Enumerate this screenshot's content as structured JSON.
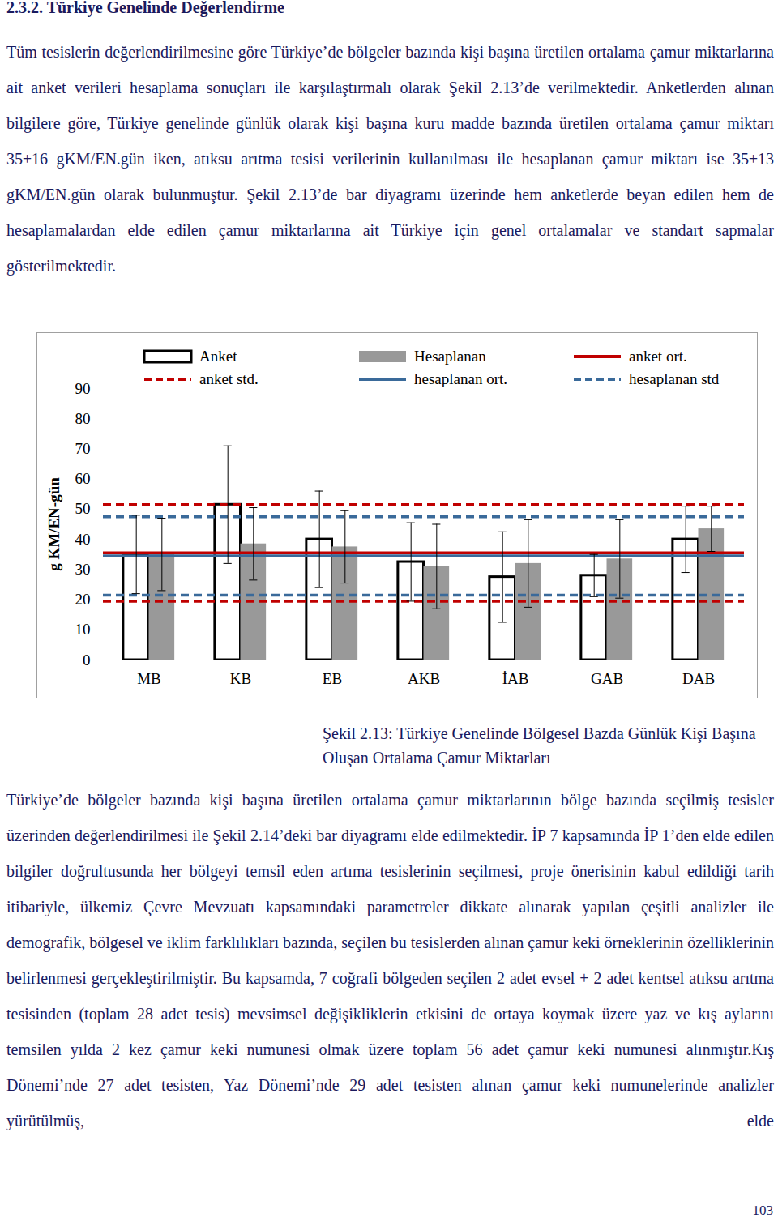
{
  "section_title": "2.3.2. Türkiye Genelinde Değerlendirme",
  "paragraphs": [
    "Tüm tesislerin değerlendirilmesine göre Türkiye’de bölgeler bazında kişi başına üretilen ortalama çamur miktarlarına ait anket verileri hesaplama sonuçları ile karşılaştırmalı olarak Şekil 2.13’de verilmektedir. Anketlerden alınan bilgilere göre, Türkiye genelinde günlük olarak kişi başına kuru madde bazında üretilen ortalama çamur miktarı 35±16 gKM/EN.gün iken, atıksu arıtma tesisi verilerinin kullanılması ile hesaplanan çamur miktarı ise 35±13 gKM/EN.gün olarak bulunmuştur. Şekil 2.13’de bar diyagramı üzerinde hem anketlerde beyan edilen hem de hesaplamalardan elde edilen çamur miktarlarına ait Türkiye için genel ortalamalar ve standart sapmalar gösterilmektedir.",
    "Türkiye’de bölgeler bazında kişi başına üretilen ortalama çamur miktarlarının bölge bazında seçilmiş tesisler üzerinden değerlendirilmesi ile Şekil 2.14’deki bar diyagramı elde edilmektedir. İP 7 kapsamında İP 1’den elde edilen bilgiler doğrultusunda her bölgeyi temsil eden artıma tesislerinin seçilmesi, proje önerisinin kabul edildiği tarih itibariyle, ülkemiz Çevre Mevzuatı kapsamındaki parametreler dikkate alınarak yapılan çeşitli analizler ile demografik, bölgesel ve iklim farklılıkları bazında, seçilen bu tesislerden alınan çamur keki örneklerinin özelliklerinin belirlenmesi gerçekleştirilmiştir. Bu kapsamda, 7 coğrafi bölgeden seçilen 2 adet evsel + 2 adet kentsel atıksu arıtma tesisinden (toplam 28 adet tesis) mevsimsel değişikliklerin etkisini de ortaya koymak üzere yaz ve kış aylarını temsilen yılda 2 kez çamur keki numunesi olmak üzere toplam 56 adet çamur keki numunesi alınmıştır.Kış Dönemi’nde 27 adet tesisten, Yaz Dönemi’nde 29 adet tesisten alınan çamur keki numunelerinde analizler yürütülmüş, elde"
  ],
  "chart_data": {
    "type": "bar",
    "y_label": "g KM/EN-gün",
    "categories": [
      "MB",
      "KB",
      "EB",
      "AKB",
      "İAB",
      "GAB",
      "DAB"
    ],
    "series": [
      {
        "name": "Anket",
        "color": "#ffffff",
        "values": [
          35,
          51.5,
          40,
          32.5,
          27.5,
          28,
          40
        ],
        "errors": [
          13,
          19.5,
          16,
          13,
          15,
          7,
          11
        ]
      },
      {
        "name": "Hesaplanan",
        "color": "#999999",
        "values": [
          35,
          38.5,
          37.5,
          31,
          32,
          33.5,
          43.5
        ],
        "errors": [
          12,
          12,
          12,
          14,
          14.5,
          13,
          7.5
        ]
      }
    ],
    "reference_lines": [
      {
        "name": "anket ort.",
        "values": [
          35.5
        ],
        "color": "#c00000",
        "line_style": "solid"
      },
      {
        "name": "anket std.",
        "values": [
          19.5,
          51.5
        ],
        "color": "#c00000",
        "line_style": "dashed"
      },
      {
        "name": "hesaplanan ort.",
        "values": [
          34.5
        ],
        "color": "#3a6a9a",
        "line_style": "solid"
      },
      {
        "name": "hesaplanan std",
        "values": [
          21.5,
          47.5
        ],
        "color": "#3a6a9a",
        "line_style": "dashed"
      }
    ],
    "ylim": [
      0,
      90
    ],
    "yticks": [
      0,
      10,
      20,
      30,
      40,
      50,
      60,
      70,
      80,
      90
    ],
    "grid": false
  },
  "caption": "Şekil 2.13: Türkiye Genelinde Bölgesel Bazda Günlük Kişi Başına Oluşan Ortalama Çamur Miktarları",
  "page_number": "103"
}
